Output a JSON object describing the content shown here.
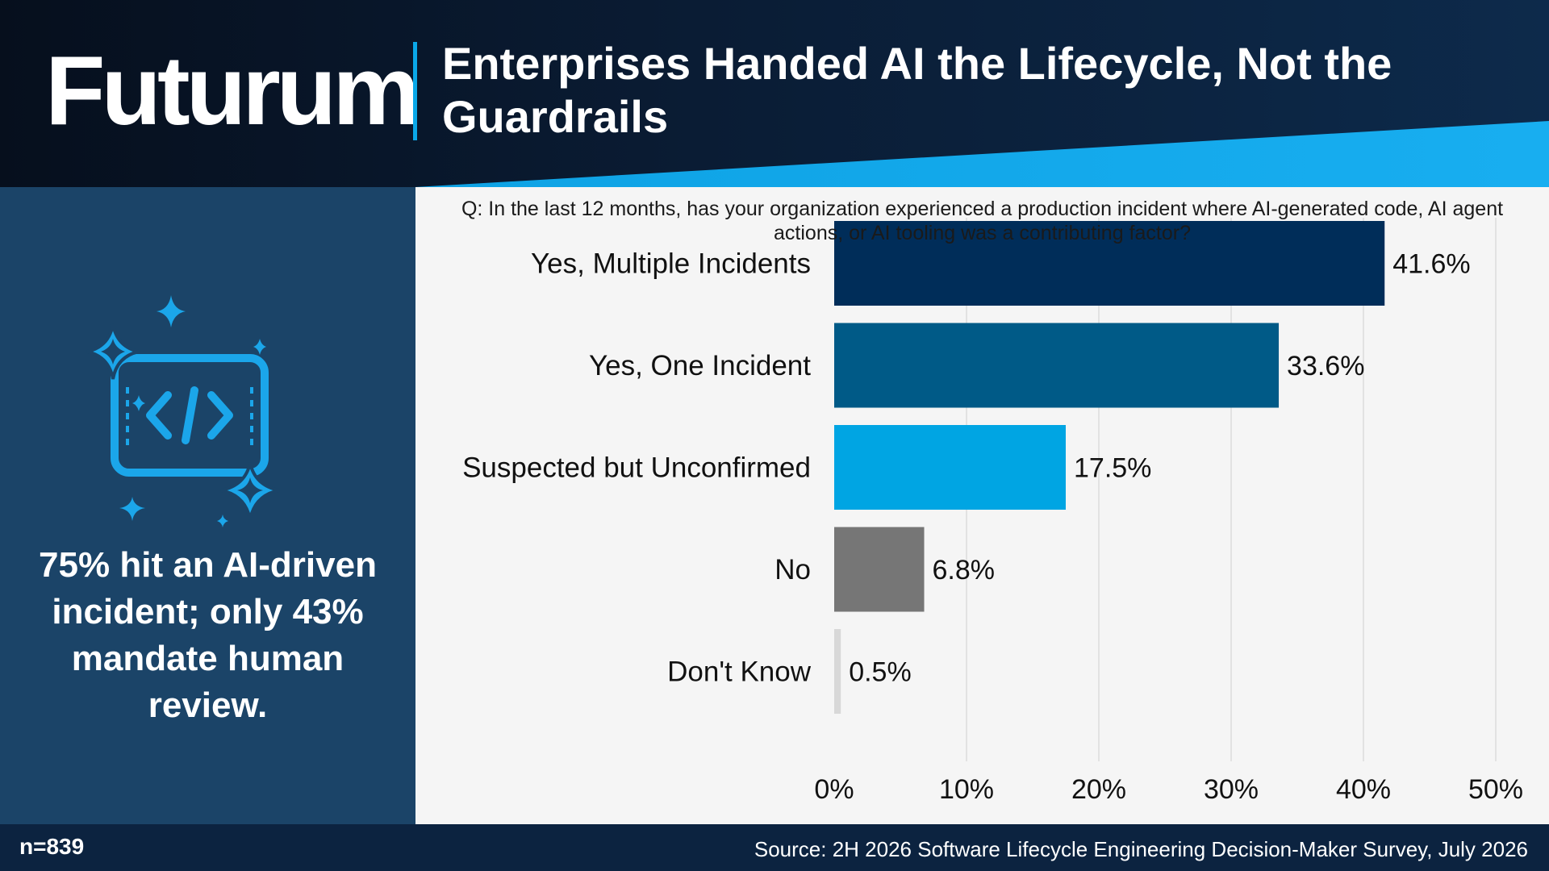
{
  "header": {
    "logo": "Futurum",
    "title": "Enterprises Handed AI the Lifecycle, Not the Guardrails"
  },
  "left_panel": {
    "icon": "code-sparkle-icon",
    "stat_text": "75% hit an AI-driven incident; only 43% mandate human review."
  },
  "question": "Q: In the last 12 months, has your organization experienced a production incident where AI-generated code, AI agent actions, or AI tooling was a contributing factor?",
  "footer": {
    "sample_size": "n=839",
    "source": "Source: 2H 2026 Software Lifecycle Engineering Decision-Maker Survey, July 2026"
  },
  "colors": {
    "brand_dark": "#0c2340",
    "accent": "#0aa8e8",
    "panel": "#1b4468"
  },
  "chart_data": {
    "type": "bar",
    "orientation": "horizontal",
    "categories": [
      "Yes, Multiple Incidents",
      "Yes, One Incident",
      "Suspected but Unconfirmed",
      "No",
      "Don't Know"
    ],
    "values": [
      41.6,
      33.6,
      17.5,
      6.8,
      0.5
    ],
    "value_labels": [
      "41.6%",
      "33.6%",
      "17.5%",
      "6.8%",
      "0.5%"
    ],
    "bar_colors": [
      "#002d59",
      "#005a87",
      "#00a5e3",
      "#767676",
      "#d8d8d8"
    ],
    "xlim": [
      0,
      50
    ],
    "x_ticks": [
      0,
      10,
      20,
      30,
      40,
      50
    ],
    "x_tick_labels": [
      "0%",
      "10%",
      "20%",
      "30%",
      "40%",
      "50%"
    ],
    "grid": true
  }
}
